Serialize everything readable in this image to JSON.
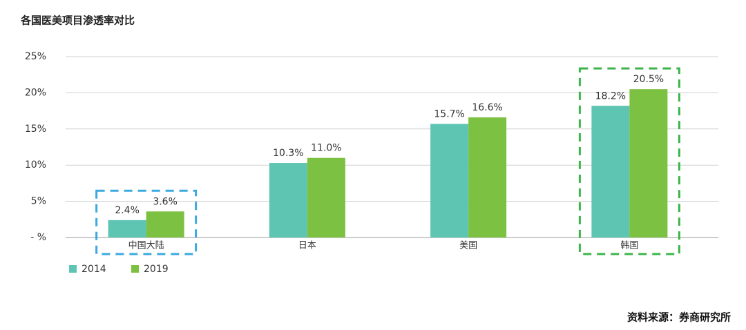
{
  "chart_data": {
    "type": "bar",
    "title": "各国医美项目渗透率对比",
    "categories": [
      "中国大陆",
      "日本",
      "美国",
      "韩国"
    ],
    "series": [
      {
        "name": "2014",
        "color": "#5ec5b3",
        "values": [
          2.4,
          10.3,
          15.7,
          18.2
        ],
        "value_labels": [
          "2.4%",
          "10.3%",
          "15.7%",
          "18.2%"
        ]
      },
      {
        "name": "2019",
        "color": "#7dc142",
        "values": [
          3.6,
          11.0,
          16.6,
          20.5
        ],
        "value_labels": [
          "3.6%",
          "11.0%",
          "16.6%",
          "20.5%"
        ]
      }
    ],
    "ylim": [
      0,
      25
    ],
    "yticks": [
      {
        "value": 0,
        "label": "- %"
      },
      {
        "value": 5,
        "label": "5%"
      },
      {
        "value": 10,
        "label": "10%"
      },
      {
        "value": 15,
        "label": "15%"
      },
      {
        "value": 20,
        "label": "20%"
      },
      {
        "value": 25,
        "label": "25%"
      }
    ],
    "grid": true,
    "legend": "bottom-left",
    "source": "资料来源：券商研究所"
  }
}
